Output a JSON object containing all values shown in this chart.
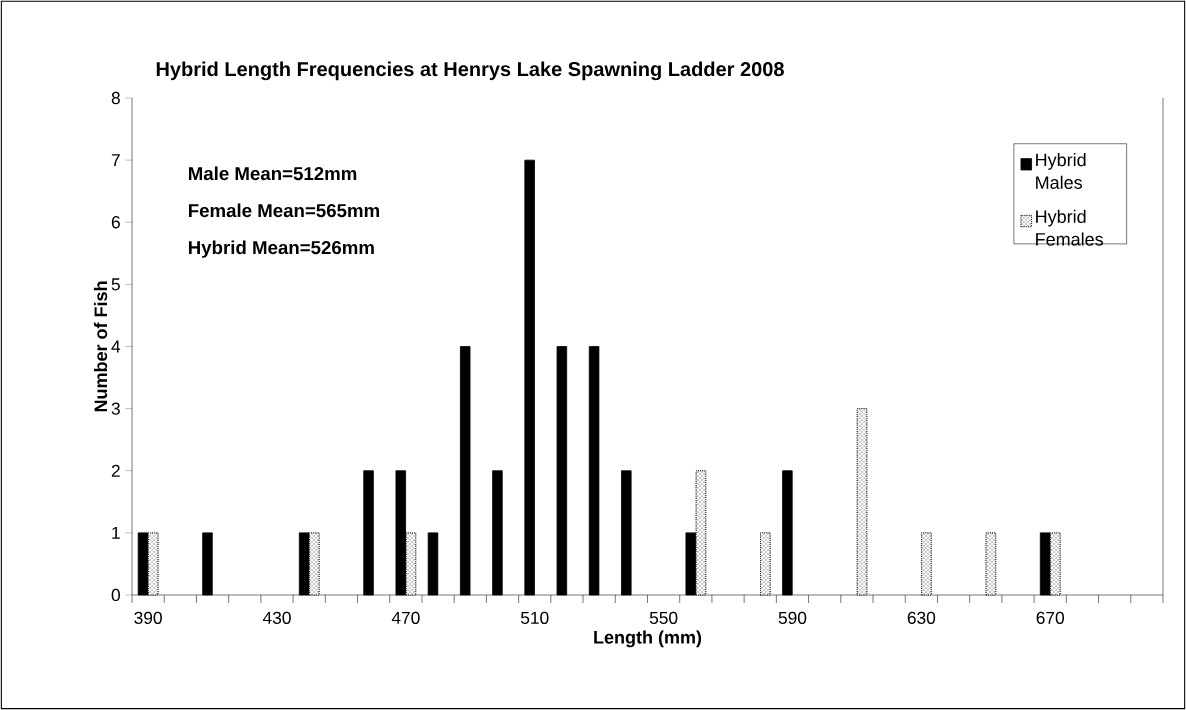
{
  "chart_data": {
    "type": "bar",
    "title": "Hybrid Length Frequencies at Henrys Lake Spawning Ladder 2008",
    "xlabel": "Length (mm)",
    "ylabel": "Number of Fish",
    "categories": [
      "390",
      null,
      null,
      null,
      "430",
      null,
      null,
      null,
      "470",
      null,
      null,
      null,
      "510",
      null,
      null,
      null,
      "550",
      null,
      null,
      null,
      "590",
      null,
      null,
      null,
      "630",
      null,
      null,
      null,
      "670",
      null,
      null,
      null
    ],
    "series": [
      {
        "name": "Hybrid Males",
        "color": "#000000",
        "values": [
          1,
          null,
          1,
          null,
          null,
          1,
          null,
          2,
          2,
          1,
          4,
          2,
          7,
          4,
          4,
          2,
          null,
          1,
          null,
          null,
          2,
          null,
          null,
          null,
          null,
          null,
          null,
          null,
          1,
          null,
          null,
          null
        ]
      },
      {
        "name": "Hybrid Females",
        "color": "#ffffff",
        "values": [
          1,
          null,
          null,
          null,
          null,
          1,
          null,
          null,
          1,
          null,
          null,
          null,
          null,
          null,
          null,
          null,
          null,
          2,
          null,
          1,
          null,
          null,
          3,
          null,
          1,
          null,
          1,
          null,
          1,
          null,
          null,
          null
        ]
      }
    ],
    "annotations": [
      "Male Mean=512mm",
      "Female Mean=565mm",
      "Hybrid Mean=526mm"
    ],
    "ylim": [
      0,
      8
    ],
    "yticks": [
      0,
      1,
      2,
      3,
      4,
      5,
      6,
      7,
      8
    ],
    "grid": false,
    "legend": "top right"
  }
}
